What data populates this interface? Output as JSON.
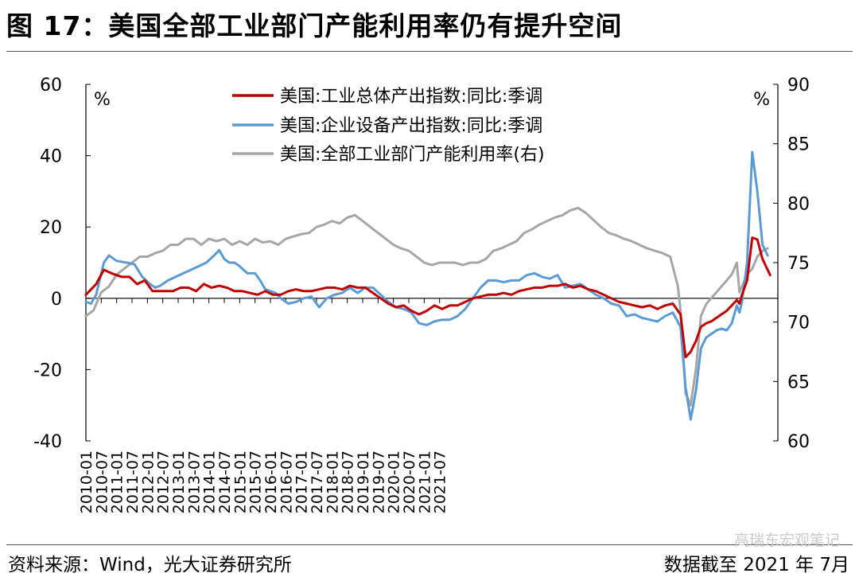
{
  "header": {
    "title": "图 17：美国全部工业部门产能利用率仍有提升空间"
  },
  "footer": {
    "source": "资料来源：Wind，光大证券研究所",
    "cutoff": "数据截至 2021 年 7月"
  },
  "watermark": "高瑞东宏观笔记",
  "colors": {
    "total": "#c00000",
    "equipment": "#5b9bd5",
    "capacity": "#a6a6a6",
    "axis": "#000000"
  },
  "chart_data": {
    "type": "line",
    "left_axis": {
      "unit": "%",
      "min": -40,
      "max": 60,
      "ticks": [
        -40,
        -20,
        0,
        20,
        40,
        60
      ]
    },
    "right_axis": {
      "unit": "%",
      "min": 60,
      "max": 90,
      "ticks": [
        60,
        65,
        70,
        75,
        80,
        85,
        90
      ]
    },
    "x_ticks": [
      "2010-01",
      "2010-07",
      "2011-01",
      "2011-07",
      "2012-01",
      "2012-07",
      "2013-01",
      "2013-07",
      "2014-01",
      "2014-07",
      "2015-01",
      "2015-07",
      "2016-01",
      "2016-07",
      "2017-01",
      "2017-07",
      "2018-01",
      "2018-07",
      "2019-01",
      "2019-07",
      "2020-01",
      "2020-07",
      "2021-01",
      "2021-07"
    ],
    "grid": false,
    "legend_position": "top",
    "series": [
      {
        "name": "美国:工业总体产出指数:同比:季调",
        "axis": "left",
        "points": [
          [
            0,
            1
          ],
          [
            4,
            4
          ],
          [
            7,
            8
          ],
          [
            10,
            7
          ],
          [
            14,
            6
          ],
          [
            17,
            6
          ],
          [
            20,
            4
          ],
          [
            23,
            5
          ],
          [
            26,
            2
          ],
          [
            30,
            2
          ],
          [
            34,
            2
          ],
          [
            37,
            3
          ],
          [
            40,
            3
          ],
          [
            43,
            2
          ],
          [
            46,
            4
          ],
          [
            49,
            3
          ],
          [
            52,
            3.5
          ],
          [
            55,
            3
          ],
          [
            58,
            2
          ],
          [
            61,
            2
          ],
          [
            64,
            1.5
          ],
          [
            67,
            1
          ],
          [
            70,
            2
          ],
          [
            73,
            1
          ],
          [
            76,
            1
          ],
          [
            79,
            2
          ],
          [
            82,
            2.5
          ],
          [
            85,
            2
          ],
          [
            88,
            2
          ],
          [
            91,
            2.5
          ],
          [
            94,
            3
          ],
          [
            97,
            3
          ],
          [
            100,
            2.5
          ],
          [
            103,
            3.5
          ],
          [
            106,
            3
          ],
          [
            109,
            3
          ],
          [
            112,
            1.5
          ],
          [
            115,
            0
          ],
          [
            118,
            -1.5
          ],
          [
            121,
            -2.5
          ],
          [
            124,
            -2
          ],
          [
            127,
            -3.5
          ],
          [
            130,
            -4.5
          ],
          [
            133,
            -3.5
          ],
          [
            136,
            -2
          ],
          [
            139,
            -3
          ],
          [
            142,
            -2
          ],
          [
            145,
            -2
          ],
          [
            148,
            -1
          ],
          [
            151,
            0
          ],
          [
            154,
            0.5
          ],
          [
            157,
            1
          ],
          [
            160,
            1
          ],
          [
            163,
            1.5
          ],
          [
            166,
            1
          ],
          [
            169,
            2
          ],
          [
            172,
            2.5
          ],
          [
            175,
            3
          ],
          [
            178,
            3
          ],
          [
            181,
            3.5
          ],
          [
            184,
            3.5
          ],
          [
            187,
            4
          ],
          [
            190,
            3
          ],
          [
            193,
            3.5
          ],
          [
            196,
            2.5
          ],
          [
            199,
            2
          ],
          [
            202,
            1
          ],
          [
            205,
            0
          ],
          [
            208,
            -1
          ],
          [
            211,
            -1.5
          ],
          [
            214,
            -2
          ],
          [
            217,
            -2.5
          ],
          [
            220,
            -2
          ],
          [
            223,
            -3
          ],
          [
            226,
            -2
          ],
          [
            229,
            -1.5
          ],
          [
            232,
            -4.5
          ],
          [
            234,
            -16.5
          ],
          [
            236,
            -15
          ],
          [
            238,
            -12
          ],
          [
            240,
            -8
          ],
          [
            242,
            -7
          ],
          [
            244,
            -6.5
          ],
          [
            246,
            -5.5
          ],
          [
            248,
            -4.5
          ],
          [
            250,
            -3.5
          ],
          [
            252,
            -2
          ],
          [
            254,
            -0.5
          ],
          [
            255,
            -1.5
          ],
          [
            256,
            1
          ],
          [
            258,
            5
          ],
          [
            260,
            17
          ],
          [
            262,
            16.5
          ],
          [
            264,
            11
          ],
          [
            266,
            8
          ],
          [
            267,
            6.5
          ]
        ]
      },
      {
        "name": "美国:企业设备产出指数:同比:季调",
        "axis": "left",
        "points": [
          [
            0,
            -1
          ],
          [
            2,
            -1.5
          ],
          [
            4,
            1
          ],
          [
            7,
            10
          ],
          [
            9,
            12
          ],
          [
            12,
            10.5
          ],
          [
            16,
            10
          ],
          [
            19,
            9.5
          ],
          [
            22,
            6
          ],
          [
            25,
            4
          ],
          [
            27,
            3
          ],
          [
            29,
            3.5
          ],
          [
            32,
            5
          ],
          [
            35,
            6
          ],
          [
            38,
            7
          ],
          [
            41,
            8
          ],
          [
            44,
            9
          ],
          [
            47,
            10
          ],
          [
            50,
            12
          ],
          [
            52,
            13.5
          ],
          [
            54,
            11
          ],
          [
            56,
            10
          ],
          [
            58,
            10
          ],
          [
            60,
            9
          ],
          [
            63,
            7
          ],
          [
            66,
            7
          ],
          [
            68,
            5
          ],
          [
            70,
            2.5
          ],
          [
            72,
            2
          ],
          [
            74,
            1.5
          ],
          [
            76,
            0
          ],
          [
            79,
            -1.5
          ],
          [
            82,
            -1
          ],
          [
            85,
            0
          ],
          [
            88,
            0.5
          ],
          [
            91,
            -2.5
          ],
          [
            94,
            0
          ],
          [
            97,
            1
          ],
          [
            100,
            1.5
          ],
          [
            103,
            3
          ],
          [
            106,
            1.5
          ],
          [
            109,
            3
          ],
          [
            112,
            3
          ],
          [
            115,
            1
          ],
          [
            118,
            -1
          ],
          [
            121,
            -2.5
          ],
          [
            124,
            -3
          ],
          [
            127,
            -4
          ],
          [
            130,
            -7
          ],
          [
            133,
            -7.5
          ],
          [
            136,
            -6.5
          ],
          [
            139,
            -6
          ],
          [
            142,
            -6
          ],
          [
            145,
            -5
          ],
          [
            148,
            -3
          ],
          [
            151,
            0
          ],
          [
            154,
            3
          ],
          [
            157,
            5
          ],
          [
            160,
            5
          ],
          [
            163,
            4.5
          ],
          [
            166,
            5
          ],
          [
            169,
            5
          ],
          [
            172,
            6.5
          ],
          [
            175,
            7
          ],
          [
            178,
            6
          ],
          [
            181,
            5.5
          ],
          [
            184,
            6.5
          ],
          [
            187,
            3
          ],
          [
            190,
            3.5
          ],
          [
            193,
            4
          ],
          [
            196,
            2.5
          ],
          [
            199,
            1
          ],
          [
            202,
            0
          ],
          [
            205,
            -1.5
          ],
          [
            208,
            -2
          ],
          [
            211,
            -5
          ],
          [
            214,
            -4.5
          ],
          [
            217,
            -5.5
          ],
          [
            220,
            -6
          ],
          [
            223,
            -6.5
          ],
          [
            226,
            -5
          ],
          [
            229,
            -4
          ],
          [
            232,
            -8
          ],
          [
            234,
            -25
          ],
          [
            236,
            -34
          ],
          [
            238,
            -26
          ],
          [
            240,
            -14
          ],
          [
            242,
            -11
          ],
          [
            244,
            -10
          ],
          [
            246,
            -9
          ],
          [
            248,
            -8.5
          ],
          [
            250,
            -9
          ],
          [
            252,
            -7
          ],
          [
            254,
            -2
          ],
          [
            255,
            -4
          ],
          [
            256,
            -1
          ],
          [
            258,
            10
          ],
          [
            260,
            41
          ],
          [
            262,
            30
          ],
          [
            264,
            15
          ],
          [
            266,
            12
          ]
        ]
      },
      {
        "name": "美国:全部工业部门产能利用率(右)",
        "axis": "right",
        "points": [
          [
            0,
            70.5
          ],
          [
            3,
            71
          ],
          [
            6,
            72.5
          ],
          [
            9,
            73
          ],
          [
            12,
            74
          ],
          [
            15,
            74.5
          ],
          [
            18,
            75
          ],
          [
            21,
            75.5
          ],
          [
            24,
            75.5
          ],
          [
            27,
            75.8
          ],
          [
            30,
            76
          ],
          [
            33,
            76.5
          ],
          [
            36,
            76.5
          ],
          [
            39,
            77
          ],
          [
            42,
            77
          ],
          [
            45,
            76.5
          ],
          [
            48,
            77
          ],
          [
            51,
            76.8
          ],
          [
            54,
            77
          ],
          [
            57,
            76.5
          ],
          [
            60,
            76.8
          ],
          [
            63,
            76.5
          ],
          [
            66,
            77
          ],
          [
            69,
            76.7
          ],
          [
            72,
            76.8
          ],
          [
            75,
            76.5
          ],
          [
            78,
            77
          ],
          [
            81,
            77.2
          ],
          [
            84,
            77.4
          ],
          [
            87,
            77.5
          ],
          [
            90,
            78
          ],
          [
            93,
            78.2
          ],
          [
            96,
            78.5
          ],
          [
            99,
            78.3
          ],
          [
            102,
            78.8
          ],
          [
            105,
            79
          ],
          [
            108,
            78.5
          ],
          [
            111,
            78
          ],
          [
            114,
            77.5
          ],
          [
            117,
            77
          ],
          [
            120,
            76.5
          ],
          [
            123,
            76.2
          ],
          [
            126,
            76
          ],
          [
            129,
            75.5
          ],
          [
            132,
            75
          ],
          [
            135,
            74.8
          ],
          [
            138,
            75
          ],
          [
            141,
            75
          ],
          [
            144,
            75
          ],
          [
            147,
            74.8
          ],
          [
            150,
            75
          ],
          [
            153,
            75
          ],
          [
            156,
            75.3
          ],
          [
            159,
            76
          ],
          [
            162,
            76.2
          ],
          [
            165,
            76.5
          ],
          [
            168,
            76.8
          ],
          [
            171,
            77.5
          ],
          [
            174,
            77.8
          ],
          [
            177,
            78.2
          ],
          [
            180,
            78.5
          ],
          [
            183,
            78.8
          ],
          [
            186,
            79
          ],
          [
            189,
            79.4
          ],
          [
            192,
            79.6
          ],
          [
            195,
            79.2
          ],
          [
            198,
            78.6
          ],
          [
            201,
            78
          ],
          [
            204,
            77.5
          ],
          [
            207,
            77.3
          ],
          [
            210,
            77
          ],
          [
            213,
            76.8
          ],
          [
            216,
            76.5
          ],
          [
            219,
            76.2
          ],
          [
            222,
            76
          ],
          [
            225,
            75.8
          ],
          [
            228,
            75.5
          ],
          [
            231,
            73
          ],
          [
            232,
            71
          ],
          [
            234,
            64
          ],
          [
            236,
            63
          ],
          [
            238,
            66
          ],
          [
            240,
            70.5
          ],
          [
            242,
            71.5
          ],
          [
            244,
            72
          ],
          [
            246,
            72.5
          ],
          [
            248,
            73
          ],
          [
            250,
            73.5
          ],
          [
            252,
            74
          ],
          [
            254,
            75
          ],
          [
            255,
            72.5
          ],
          [
            256,
            73
          ],
          [
            258,
            74
          ],
          [
            260,
            74.5
          ],
          [
            262,
            75.5
          ],
          [
            264,
            76
          ],
          [
            266,
            76.2
          ]
        ]
      }
    ]
  }
}
